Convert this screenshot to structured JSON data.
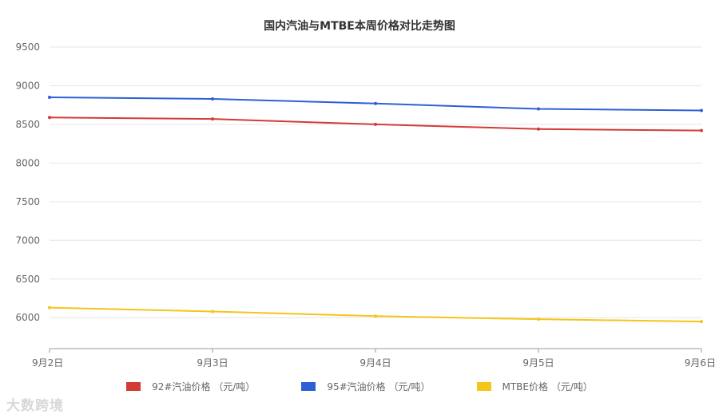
{
  "chart_data": {
    "type": "line",
    "title": "国内汽油与MTBE本周价格对比走势图",
    "categories": [
      "9月2日",
      "9月3日",
      "9月4日",
      "9月5日",
      "9月6日"
    ],
    "yticks": [
      6000,
      6500,
      7000,
      7500,
      8000,
      8500,
      9000,
      9500
    ],
    "ylim": [
      5600,
      9500
    ],
    "grid": true,
    "legend_position": "bottom",
    "series": [
      {
        "name": "92#汽油价格 （元/吨）",
        "color": "#d23b36",
        "values": [
          8590,
          8570,
          8500,
          8440,
          8420
        ]
      },
      {
        "name": "95#汽油价格 （元/吨）",
        "color": "#2e5fd6",
        "values": [
          8850,
          8830,
          8770,
          8700,
          8680
        ]
      },
      {
        "name": "MTBE价格 （元/吨）",
        "color": "#f5c518",
        "values": [
          6130,
          6080,
          6020,
          5980,
          5950
        ]
      }
    ]
  },
  "watermark": "大数跨境"
}
